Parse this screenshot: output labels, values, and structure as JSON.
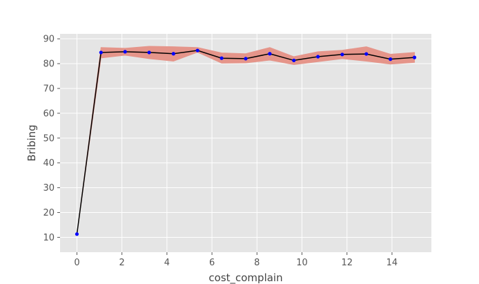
{
  "chart_data": {
    "type": "line",
    "title": "",
    "xlabel": "cost_complain",
    "ylabel": "Bribing",
    "xlim": [
      -0.75,
      15.75
    ],
    "ylim": [
      4,
      92
    ],
    "xticks": [
      0,
      2,
      4,
      6,
      8,
      10,
      12,
      14
    ],
    "yticks": [
      10,
      20,
      30,
      40,
      50,
      60,
      70,
      80,
      90
    ],
    "grid": true,
    "background": "#e5e5e5",
    "grid_color": "#ffffff",
    "line_color": "#000000",
    "marker_color": "#0000ff",
    "band_color": "#e5958a",
    "series": [
      {
        "x": [
          0,
          1.07,
          2.14,
          3.21,
          4.29,
          5.36,
          6.43,
          7.5,
          8.57,
          9.64,
          10.71,
          11.79,
          12.86,
          13.93,
          15.0
        ],
        "y": [
          11.3,
          84.5,
          84.8,
          84.5,
          84.0,
          85.3,
          82.2,
          82.0,
          84.0,
          81.3,
          82.8,
          83.7,
          83.9,
          81.8,
          82.5
        ],
        "lower": [
          11.3,
          82.3,
          83.4,
          82.0,
          81.0,
          84.6,
          80.2,
          80.3,
          81.4,
          79.6,
          80.8,
          82.0,
          81.0,
          79.8,
          80.5
        ],
        "upper": [
          11.3,
          86.5,
          86.2,
          87.0,
          86.8,
          86.5,
          84.3,
          84.0,
          86.5,
          82.8,
          84.8,
          85.4,
          86.8,
          83.8,
          84.5
        ]
      }
    ]
  }
}
